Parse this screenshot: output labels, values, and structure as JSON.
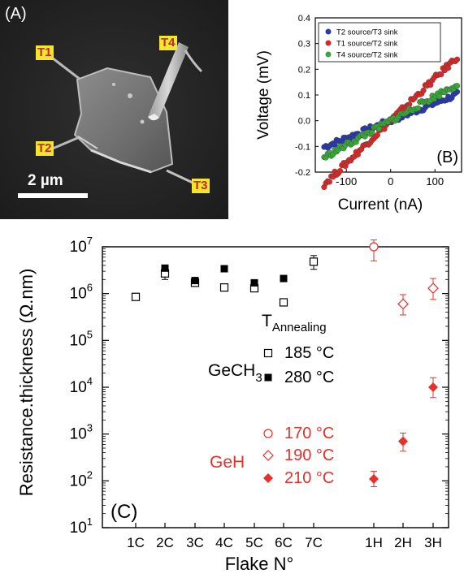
{
  "panel_a": {
    "label": "(A)",
    "terminals": [
      "T1",
      "T2",
      "T3",
      "T4"
    ],
    "scale_bar": "2 µm"
  },
  "chart_data": [
    {
      "type": "scatter",
      "panel_label": "(B)",
      "xlabel": "Current (nA)",
      "ylabel": "Voltage (mV)",
      "xlim": [
        -170,
        160
      ],
      "ylim": [
        -0.2,
        0.4
      ],
      "xticks": [
        "-100",
        "0",
        "100"
      ],
      "yticks": [
        "-0.2",
        "-0.1",
        "0.0",
        "0.1",
        "0.2",
        "0.3",
        "0.4"
      ],
      "legend_position": "top-left",
      "series": [
        {
          "name": "T2 source/T3 sink",
          "color": "#2b3aa8",
          "slope": 0.00068,
          "xrange": [
            -150,
            150
          ],
          "end_x": 150,
          "end_y": 0.09
        },
        {
          "name": "T1 source/T2 sink",
          "color": "#d42a2a",
          "slope": 0.00165,
          "xrange": [
            -150,
            150
          ],
          "end_x": 140,
          "end_y": 0.25
        },
        {
          "name": "T4 source/T2 sink",
          "color": "#3aa63a",
          "slope": 0.00095,
          "xrange": [
            -150,
            150
          ],
          "end_x": 150,
          "end_y": 0.12
        }
      ]
    },
    {
      "type": "scatter",
      "panel_label": "(C)",
      "xlabel": "Flake N°",
      "ylabel": "Resistance.thickness (Ω.nm)",
      "yscale": "log",
      "ylim": [
        10,
        10000000
      ],
      "ytick_exponents": [
        "1",
        "2",
        "3",
        "4",
        "5",
        "6",
        "7"
      ],
      "ytick_base": "10",
      "categories": [
        "1C",
        "2C",
        "3C",
        "4C",
        "5C",
        "6C",
        "7C",
        "1H",
        "2H",
        "3H"
      ],
      "legend": {
        "title_main": "T",
        "title_sub": "Annealing",
        "group1_label_main": "GeCH",
        "group1_label_sub": "3",
        "group2_label": "GeH",
        "entries": [
          {
            "label": "185 °C",
            "marker": "open-square",
            "color": "#000000"
          },
          {
            "label": "280 °C",
            "marker": "filled-square",
            "color": "#000000"
          },
          {
            "label": "170 °C",
            "marker": "open-circle",
            "color": "#e8302a"
          },
          {
            "label": "190 °C",
            "marker": "open-diamond",
            "color": "#e8302a"
          },
          {
            "label": "210 °C",
            "marker": "filled-diamond",
            "color": "#e8302a"
          }
        ]
      },
      "points": [
        {
          "category": "1C",
          "value": 850000,
          "marker": "open-square",
          "err_low": 750000,
          "err_high": 950000
        },
        {
          "category": "2C",
          "value": 2700000,
          "marker": "open-square",
          "err_low": 2000000,
          "err_high": 3500000
        },
        {
          "category": "2C",
          "value": 3500000,
          "marker": "filled-square"
        },
        {
          "category": "3C",
          "value": 1700000,
          "marker": "open-square"
        },
        {
          "category": "3C",
          "value": 1900000,
          "marker": "filled-square"
        },
        {
          "category": "4C",
          "value": 1350000,
          "marker": "open-square"
        },
        {
          "category": "4C",
          "value": 3400000,
          "marker": "filled-square"
        },
        {
          "category": "5C",
          "value": 1300000,
          "marker": "open-square"
        },
        {
          "category": "5C",
          "value": 1700000,
          "marker": "filled-square"
        },
        {
          "category": "6C",
          "value": 650000,
          "marker": "open-square"
        },
        {
          "category": "6C",
          "value": 2100000,
          "marker": "filled-square"
        },
        {
          "category": "7C",
          "value": 4800000,
          "marker": "open-square",
          "err_low": 3300000,
          "err_high": 6500000
        },
        {
          "category": "1H",
          "value": 10000000,
          "marker": "open-circle",
          "err_low": 5000000,
          "err_high": 14000000
        },
        {
          "category": "2H",
          "value": 600000,
          "marker": "open-diamond",
          "err_low": 350000,
          "err_high": 950000
        },
        {
          "category": "3H",
          "value": 1300000,
          "marker": "open-diamond",
          "err_low": 750000,
          "err_high": 2100000
        },
        {
          "category": "1H",
          "value": 110,
          "marker": "filled-diamond",
          "err_low": 75,
          "err_high": 160
        },
        {
          "category": "2H",
          "value": 700,
          "marker": "filled-diamond",
          "err_low": 430,
          "err_high": 1050
        },
        {
          "category": "3H",
          "value": 10000,
          "marker": "filled-diamond",
          "err_low": 6000,
          "err_high": 16000
        }
      ]
    }
  ]
}
